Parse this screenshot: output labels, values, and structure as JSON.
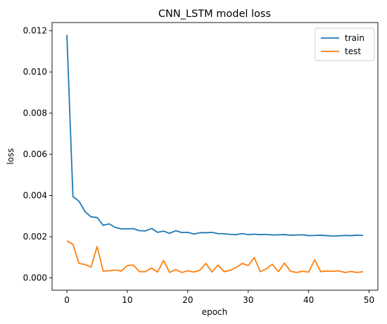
{
  "chart_data": {
    "type": "line",
    "title": "CNN_LSTM model loss",
    "xlabel": "epoch",
    "ylabel": "loss",
    "xlim": [
      -2.45,
      51.45
    ],
    "ylim": [
      -0.0006,
      0.0124
    ],
    "xticks": [
      0,
      10,
      20,
      30,
      40,
      50
    ],
    "yticks": [
      0.0,
      0.002,
      0.004,
      0.006,
      0.008,
      0.01,
      0.012
    ],
    "ytick_labels": [
      "0.000",
      "0.002",
      "0.004",
      "0.006",
      "0.008",
      "0.010",
      "0.012"
    ],
    "xtick_labels": [
      "0",
      "10",
      "20",
      "30",
      "40",
      "50"
    ],
    "grid": false,
    "legend_position": "top-right",
    "colors": {
      "train": "#1f77b4",
      "test": "#ff7f0e"
    },
    "x": [
      0,
      1,
      2,
      3,
      4,
      5,
      6,
      7,
      8,
      9,
      10,
      11,
      12,
      13,
      14,
      15,
      16,
      17,
      18,
      19,
      20,
      21,
      22,
      23,
      24,
      25,
      26,
      27,
      28,
      29,
      30,
      31,
      32,
      33,
      34,
      35,
      36,
      37,
      38,
      39,
      40,
      41,
      42,
      43,
      44,
      45,
      46,
      47,
      48,
      49
    ],
    "series": [
      {
        "name": "train",
        "values": [
          0.0118,
          0.00395,
          0.00372,
          0.00322,
          0.00296,
          0.00293,
          0.00255,
          0.00262,
          0.00245,
          0.00238,
          0.00238,
          0.00239,
          0.00229,
          0.00228,
          0.0024,
          0.00221,
          0.00227,
          0.00216,
          0.00229,
          0.0022,
          0.00221,
          0.00213,
          0.00219,
          0.00219,
          0.00221,
          0.00215,
          0.00214,
          0.00211,
          0.0021,
          0.00215,
          0.0021,
          0.00212,
          0.0021,
          0.00211,
          0.00208,
          0.00209,
          0.0021,
          0.00207,
          0.00208,
          0.00209,
          0.00205,
          0.00206,
          0.00207,
          0.00205,
          0.00203,
          0.00204,
          0.00206,
          0.00205,
          0.00207,
          0.00206
        ]
      },
      {
        "name": "test",
        "values": [
          0.0018,
          0.00163,
          0.0007,
          0.00065,
          0.00052,
          0.00152,
          0.00033,
          0.00034,
          0.00038,
          0.00033,
          0.0006,
          0.00062,
          0.0003,
          0.0003,
          0.00048,
          0.00028,
          0.00084,
          0.00026,
          0.0004,
          0.00026,
          0.00034,
          0.00028,
          0.00037,
          0.0007,
          0.00028,
          0.00062,
          0.0003,
          0.00036,
          0.0005,
          0.0007,
          0.0006,
          0.00098,
          0.0003,
          0.00044,
          0.00066,
          0.0003,
          0.00072,
          0.00032,
          0.00026,
          0.00032,
          0.00028,
          0.00088,
          0.0003,
          0.00033,
          0.00032,
          0.00034,
          0.00026,
          0.00031,
          0.00026,
          0.0003
        ]
      }
    ]
  }
}
